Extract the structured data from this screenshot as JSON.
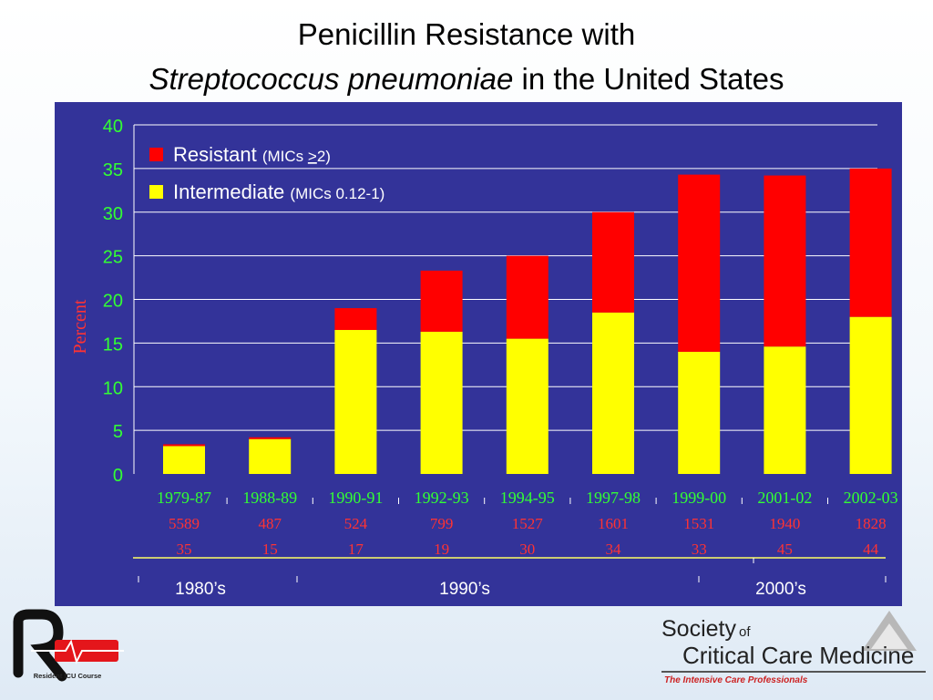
{
  "title": {
    "line1": "Penicillin Resistance with",
    "line2_italic": "Streptococcus pneumoniae",
    "line2_rest": " in the United States"
  },
  "chart_data": {
    "type": "bar",
    "stacked": true,
    "categories": [
      "1979-87",
      "1988-89",
      "1990-91",
      "1992-93",
      "1994-95",
      "1997-98",
      "1999-00",
      "2001-02",
      "2002-03"
    ],
    "series": [
      {
        "name": "Intermediate",
        "detail": "(MICs 0.12-1)",
        "color": "#ffff00",
        "values": [
          3.2,
          4.0,
          16.5,
          16.3,
          15.5,
          18.5,
          14.0,
          14.6,
          18.0
        ]
      },
      {
        "name": "Resistant",
        "detail_prefix": "(MICs ",
        "detail_u": ">",
        "detail_suffix": "2)",
        "color": "#ff0000",
        "values": [
          0.2,
          0.2,
          2.5,
          7.0,
          9.5,
          11.5,
          20.3,
          19.6,
          17.0
        ]
      }
    ],
    "row2": [
      "5589",
      "487",
      "524",
      "799",
      "1527",
      "1601",
      "1531",
      "1940",
      "1828"
    ],
    "row3": [
      "35",
      "15",
      "17",
      "19",
      "30",
      "34",
      "33",
      "45",
      "44"
    ],
    "ylabel": "Percent",
    "ylim": [
      0,
      40
    ],
    "yticks": [
      "0",
      "5",
      "10",
      "15",
      "20",
      "25",
      "30",
      "35",
      "40"
    ],
    "grid": true,
    "legend_position": "top-left",
    "decades": [
      "1980’s",
      "1990’s",
      "2000’s"
    ],
    "colors": {
      "background": "#333399",
      "axis_text": "#33ff33",
      "ylabel": "#ff3333",
      "row_text": "#ff3333",
      "gridline": "#ffffff",
      "baseline": "#ffff66"
    }
  },
  "footer": {
    "left_logo": {
      "text": "Resident ICU Course",
      "icon": "ricu-logo-icon"
    },
    "right_logo": {
      "word1": "Society",
      "word_of": "of",
      "line2": "Critical Care Medicine",
      "tagline": "The Intensive Care Professionals",
      "icon": "sccm-triangle-icon"
    }
  }
}
